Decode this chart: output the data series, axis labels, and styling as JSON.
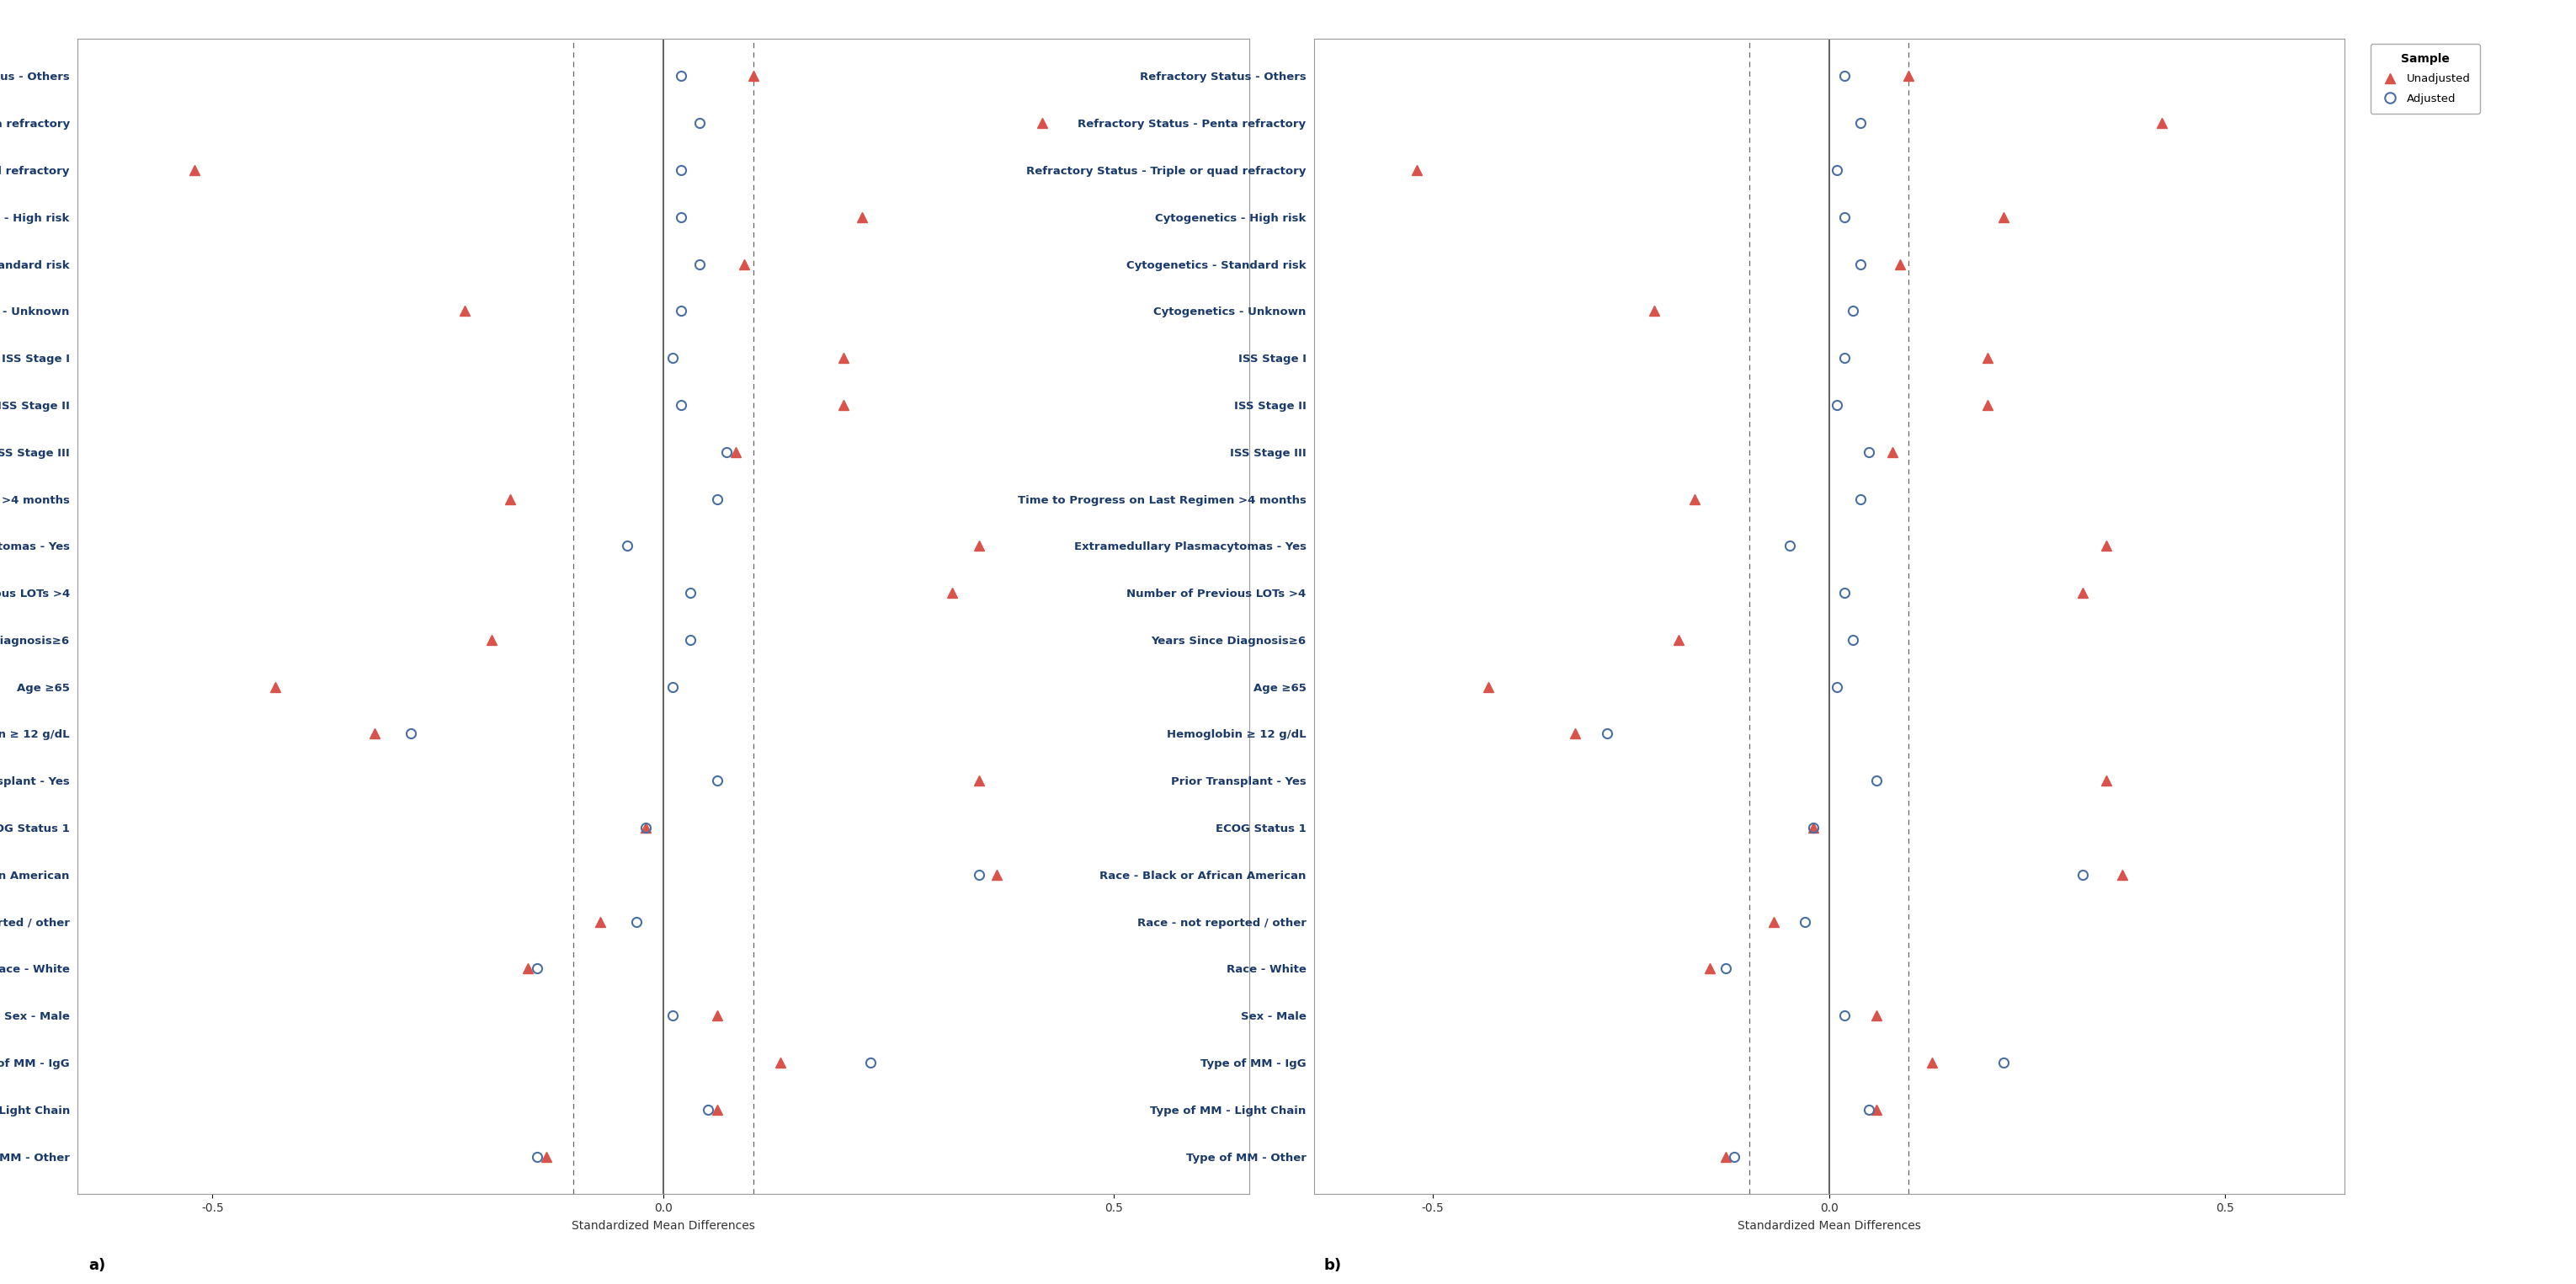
{
  "covariates": [
    "Refractory Status - Others",
    "Refractory Status - Penta refractory",
    "Refractory Status - Triple or quad refractory",
    "Cytogenetics - High risk",
    "Cytogenetics - Standard risk",
    "Cytogenetics - Unknown",
    "ISS Stage I",
    "ISS Stage II",
    "ISS Stage III",
    "Time to Progress on Last Regimen >4 months",
    "Extramedullary Plasmacytomas - Yes",
    "Number of Previous LOTs >4",
    "Years Since Diagnosis≥6",
    "Age ≥65",
    "Hemoglobin ≥ 12 g/dL",
    "Prior Transplant - Yes",
    "ECOG Status 1",
    "Race - Black or African American",
    "Race - not reported / other",
    "Race - White",
    "Sex - Male",
    "Type of MM - IgG",
    "Type of MM - Light Chain",
    "Type of MM - Other"
  ],
  "panel_a": {
    "unadjusted": [
      0.1,
      0.42,
      -0.52,
      0.22,
      0.09,
      -0.22,
      0.2,
      0.2,
      0.08,
      -0.17,
      0.35,
      0.32,
      -0.19,
      -0.43,
      -0.32,
      0.35,
      -0.02,
      0.37,
      -0.07,
      -0.15,
      0.06,
      0.13,
      0.06,
      -0.13
    ],
    "adjusted": [
      0.02,
      0.04,
      0.02,
      0.02,
      0.04,
      0.02,
      0.01,
      0.02,
      0.07,
      0.06,
      -0.04,
      0.03,
      0.03,
      0.01,
      -0.28,
      0.06,
      -0.02,
      0.35,
      -0.03,
      -0.14,
      0.01,
      0.23,
      0.05,
      -0.14
    ]
  },
  "panel_b": {
    "unadjusted": [
      0.1,
      0.42,
      -0.52,
      0.22,
      0.09,
      -0.22,
      0.2,
      0.2,
      0.08,
      -0.17,
      0.35,
      0.32,
      -0.19,
      -0.43,
      -0.32,
      0.35,
      -0.02,
      0.37,
      -0.07,
      -0.15,
      0.06,
      0.13,
      0.06,
      -0.13
    ],
    "adjusted": [
      0.02,
      0.04,
      0.01,
      0.02,
      0.04,
      0.03,
      0.02,
      0.01,
      0.05,
      0.04,
      -0.05,
      0.02,
      0.03,
      0.01,
      -0.28,
      0.06,
      -0.02,
      0.32,
      -0.03,
      -0.13,
      0.02,
      0.22,
      0.05,
      -0.12
    ]
  },
  "unadjusted_color": "#d9534a",
  "adjusted_color": "#4a6fa5",
  "xlim": [
    -0.65,
    0.65
  ],
  "xticks": [
    -0.5,
    0.0,
    0.5
  ],
  "xticklabels": [
    "-0.5",
    "0.0",
    "0.5"
  ],
  "xlabel": "Standardized Mean Differences",
  "vline_solid": 0.0,
  "vlines_dashed": [
    -0.1,
    0.1
  ],
  "background": "#ffffff",
  "panel_a_label": "a)",
  "panel_b_label": "b)",
  "legend_title": "Sample",
  "legend_unadj": "Unadjusted",
  "legend_adj": "Adjusted"
}
